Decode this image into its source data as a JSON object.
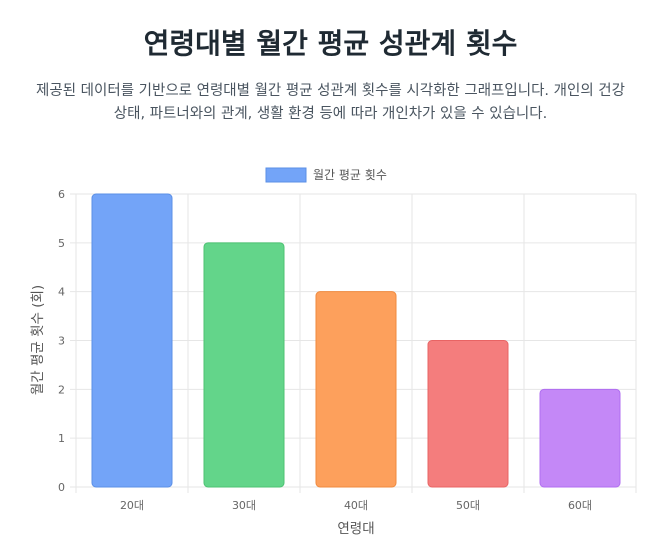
{
  "page": {
    "title": "연령대별 월간 평균 성관계 횟수",
    "description": "제공된 데이터를 기반으로 연령대별 월간 평균 성관계 횟수를 시각화한 그래프입니다. 개인의 건강 상태, 파트너와의 관계, 생활 환경 등에 따라 개인차가 있을 수 있습니다."
  },
  "chart_data": {
    "type": "bar",
    "categories": [
      "20대",
      "30대",
      "40대",
      "50대",
      "60대"
    ],
    "series": [
      {
        "name": "월간 평균 횟수",
        "values": [
          6,
          5,
          4,
          3,
          2
        ]
      }
    ],
    "xlabel": "연령대",
    "ylabel": "월간 평균 횟수 (회)",
    "ylim": [
      0,
      6
    ],
    "yticks": [
      0,
      1,
      2,
      3,
      4,
      5,
      6
    ],
    "grid": true,
    "legend": "top-center",
    "colors": {
      "bars": [
        "#73a4f8",
        "#63d58a",
        "#fda05c",
        "#f47d7d",
        "#c488f7"
      ],
      "borders": [
        "#5b8fe6",
        "#4cc272",
        "#f08a3e",
        "#e86464",
        "#b06ef0"
      ],
      "legend_fill": "#73a4f8",
      "legend_border": "#5b8fe6",
      "grid": "#e6e6e6"
    }
  }
}
